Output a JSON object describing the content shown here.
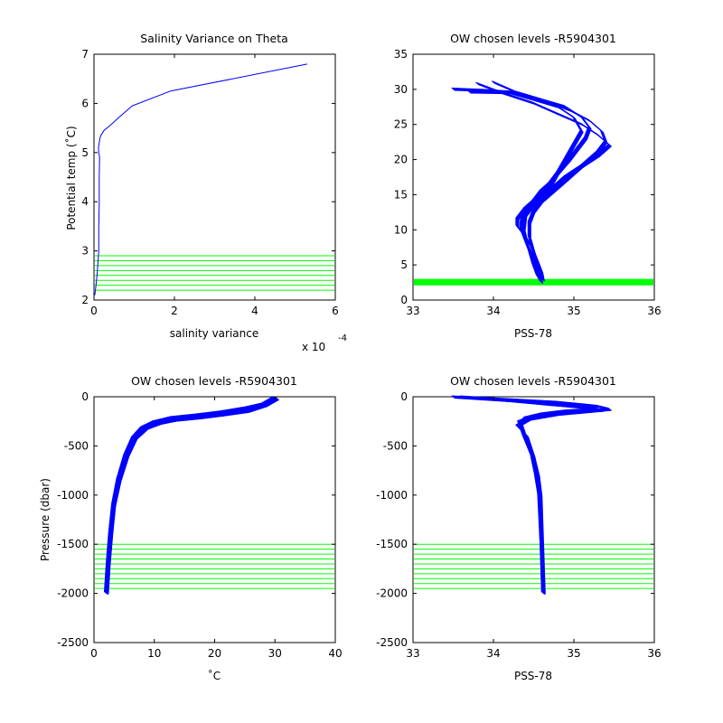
{
  "figure": {
    "background": "#ffffff",
    "profile_color": "#0000ff",
    "level_color": "#00ff00"
  },
  "chart_data": [
    {
      "id": "salvar",
      "type": "line",
      "title": "Salinity Variance on Theta",
      "xlabel": "salinity variance",
      "ylabel": "Potential temp (˚C)",
      "x_multiplier": "x 10",
      "x_multiplier_exponent": "-4",
      "xlim": [
        0,
        6
      ],
      "ylim": [
        2,
        7
      ],
      "xticks": [
        0,
        2,
        4,
        6
      ],
      "yticks": [
        2,
        3,
        4,
        5,
        6,
        7
      ],
      "series": [
        {
          "x": [
            0.02,
            0.05,
            0.08,
            0.1,
            0.12,
            0.12,
            0.13,
            0.13,
            0.14,
            0.12,
            0.11,
            0.13,
            0.15,
            0.17,
            0.25,
            0.4,
            0.6,
            0.95,
            1.9,
            5.3
          ],
          "y": [
            2.1,
            2.3,
            2.55,
            2.8,
            3.0,
            3.5,
            4.0,
            4.5,
            4.9,
            5.0,
            5.1,
            5.2,
            5.3,
            5.35,
            5.45,
            5.55,
            5.7,
            5.95,
            6.25,
            6.8
          ]
        }
      ],
      "levels": [
        2.2,
        2.3,
        2.4,
        2.5,
        2.6,
        2.7,
        2.8,
        2.9
      ],
      "level_style": "thin"
    },
    {
      "id": "theta_sal",
      "type": "line",
      "title": "OW chosen levels -R5904301",
      "xlabel": "PSS-78",
      "ylabel": "",
      "xlim": [
        33,
        36
      ],
      "ylim": [
        0,
        35
      ],
      "xticks": [
        33,
        34,
        35,
        36
      ],
      "yticks": [
        0,
        5,
        10,
        15,
        20,
        25,
        30,
        35
      ],
      "series": [
        {
          "x": [
            34.6,
            34.55,
            34.5,
            34.45,
            34.4,
            34.35,
            34.35,
            34.4,
            34.5,
            34.6,
            34.7,
            34.8,
            34.95,
            35.05,
            35.15,
            35.2,
            35.1,
            34.9,
            34.6,
            34.3,
            33.9,
            33.5
          ],
          "y": [
            2.5,
            3.5,
            5,
            7,
            8.5,
            10,
            11,
            12.5,
            14,
            15.5,
            16.5,
            18,
            20,
            21.5,
            23,
            24.5,
            26,
            27.5,
            28.5,
            29.5,
            29.8,
            30
          ]
        },
        {
          "x": [
            34.6,
            34.58,
            34.55,
            34.5,
            34.45,
            34.45,
            34.5,
            34.6,
            34.7,
            34.85,
            35.0,
            35.15,
            35.3,
            35.4,
            35.35,
            35.2,
            34.95,
            34.6,
            34.3,
            34.0
          ],
          "y": [
            2.5,
            3.5,
            5,
            7,
            9,
            11,
            12.5,
            14,
            15,
            16.5,
            18,
            19.5,
            21,
            22.5,
            24,
            25.5,
            27,
            28.5,
            29.5,
            31
          ]
        },
        {
          "x": [
            34.62,
            34.6,
            34.55,
            34.48,
            34.4,
            34.3,
            34.3,
            34.4,
            34.55,
            34.7,
            34.8,
            34.9,
            35.0,
            35.1,
            35.0,
            34.8,
            34.5,
            34.2,
            33.7
          ],
          "y": [
            2.8,
            4,
            5.5,
            7.5,
            9,
            10.5,
            11.5,
            13,
            14.5,
            16,
            18,
            20,
            22,
            24,
            26,
            27.5,
            28.5,
            29.5,
            29.6
          ]
        },
        {
          "x": [
            34.6,
            34.55,
            34.5,
            34.42,
            34.38,
            34.4,
            34.5,
            34.62,
            34.75,
            34.9,
            35.1,
            35.3,
            35.45,
            35.3,
            35.1,
            34.8,
            34.5,
            34.1,
            33.8
          ],
          "y": [
            2.6,
            4,
            6,
            8,
            10,
            12,
            13.5,
            15,
            16,
            17.5,
            19,
            20.5,
            22,
            23.5,
            25,
            26.5,
            28,
            29.5,
            30.8
          ]
        }
      ],
      "levels": [
        2.2,
        2.3,
        2.4,
        2.5,
        2.6,
        2.7,
        2.8,
        2.9
      ],
      "level_style": "thick"
    },
    {
      "id": "temp_pres",
      "type": "line",
      "title": "OW chosen levels -R5904301",
      "xlabel": "˚C",
      "ylabel": "Pressure (dbar)",
      "xlim": [
        0,
        40
      ],
      "ylim": [
        -2500,
        0
      ],
      "xticks": [
        0,
        10,
        20,
        30,
        40
      ],
      "yticks": [
        -2500,
        -2000,
        -1500,
        -1000,
        -500,
        0
      ],
      "series": [
        {
          "x": [
            2.0,
            2.3,
            2.7,
            3.2,
            4.0,
            5.2,
            6.5,
            8.0,
            10.0,
            13.0,
            17.0,
            21.0,
            25.0,
            28.0,
            30.0
          ],
          "y": [
            -2000,
            -1700,
            -1400,
            -1100,
            -850,
            -600,
            -420,
            -320,
            -260,
            -215,
            -190,
            -160,
            -120,
            -80,
            -10
          ]
        },
        {
          "x": [
            2.2,
            2.5,
            2.9,
            3.4,
            4.3,
            5.6,
            7.0,
            8.8,
            11.0,
            14.0,
            18.0,
            22.0,
            26.0,
            29.0
          ],
          "y": [
            -2000,
            -1700,
            -1400,
            -1100,
            -850,
            -600,
            -420,
            -320,
            -270,
            -230,
            -200,
            -170,
            -130,
            -60
          ]
        },
        {
          "x": [
            2.1,
            2.4,
            2.8,
            3.3,
            4.1,
            5.3,
            6.7,
            8.3,
            10.5,
            13.5,
            17.5,
            21.5,
            25.5,
            28.5,
            30.5
          ],
          "y": [
            -2000,
            -1700,
            -1400,
            -1100,
            -850,
            -600,
            -420,
            -320,
            -275,
            -240,
            -215,
            -185,
            -150,
            -90,
            -20
          ]
        }
      ],
      "levels": [
        -1500,
        -1550,
        -1600,
        -1650,
        -1700,
        -1750,
        -1800,
        -1850,
        -1900,
        -1950
      ],
      "level_style": "thin"
    },
    {
      "id": "sal_pres",
      "type": "line",
      "title": "OW chosen levels -R5904301",
      "xlabel": "PSS-78",
      "ylabel": "",
      "xlim": [
        33,
        36
      ],
      "ylim": [
        -2500,
        0
      ],
      "xticks": [
        33,
        34,
        35,
        36
      ],
      "yticks": [
        -2500,
        -2000,
        -1500,
        -1000,
        -500,
        0
      ],
      "series": [
        {
          "x": [
            34.62,
            34.6,
            34.58,
            34.55,
            34.5,
            34.4,
            34.35,
            34.4,
            34.6,
            34.9,
            35.3,
            35.2,
            34.7,
            34.2,
            33.5
          ],
          "y": [
            -2000,
            -1500,
            -1000,
            -800,
            -600,
            -400,
            -280,
            -220,
            -180,
            -150,
            -130,
            -110,
            -80,
            -40,
            -5
          ]
        },
        {
          "x": [
            34.63,
            34.61,
            34.59,
            34.56,
            34.5,
            34.42,
            34.3,
            34.45,
            34.8,
            35.2,
            35.45,
            35.3,
            34.8,
            34.0,
            33.6
          ],
          "y": [
            -2000,
            -1500,
            -1000,
            -800,
            -600,
            -400,
            -300,
            -230,
            -180,
            -150,
            -130,
            -100,
            -60,
            -25,
            -5
          ]
        },
        {
          "x": [
            34.62,
            34.6,
            34.57,
            34.53,
            34.48,
            34.38,
            34.32,
            34.5,
            34.9,
            35.35,
            35.1,
            34.6,
            33.9
          ],
          "y": [
            -2000,
            -1500,
            -1000,
            -800,
            -600,
            -400,
            -260,
            -200,
            -160,
            -140,
            -110,
            -70,
            -20
          ]
        }
      ],
      "levels": [
        -1500,
        -1550,
        -1600,
        -1650,
        -1700,
        -1750,
        -1800,
        -1850,
        -1900,
        -1950
      ],
      "level_style": "thin"
    }
  ]
}
